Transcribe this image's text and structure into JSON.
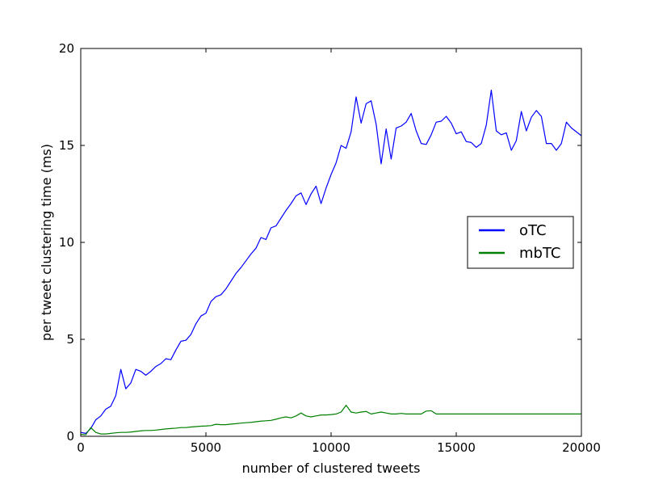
{
  "chart_data": {
    "type": "line",
    "title": "",
    "xlabel": "number of clustered tweets",
    "ylabel": "per tweet clustering time (ms)",
    "xlim": [
      0,
      20000
    ],
    "ylim": [
      0,
      20
    ],
    "xticks": [
      0,
      5000,
      10000,
      15000,
      20000
    ],
    "yticks": [
      0,
      5,
      10,
      15,
      20
    ],
    "x_tick_labels": [
      "0",
      "5000",
      "10000",
      "15000",
      "20000"
    ],
    "y_tick_labels": [
      "0",
      "5",
      "10",
      "15",
      "20"
    ],
    "grid": false,
    "legend_position": "right",
    "series": [
      {
        "name": "oTC",
        "color": "#0000ff",
        "points": [
          [
            0,
            0.2
          ],
          [
            200,
            0.15
          ],
          [
            400,
            0.4
          ],
          [
            600,
            0.85
          ],
          [
            800,
            1.05
          ],
          [
            1000,
            1.4
          ],
          [
            1200,
            1.55
          ],
          [
            1400,
            2.1
          ],
          [
            1600,
            3.45
          ],
          [
            1800,
            2.45
          ],
          [
            2000,
            2.75
          ],
          [
            2200,
            3.45
          ],
          [
            2400,
            3.35
          ],
          [
            2600,
            3.15
          ],
          [
            2800,
            3.35
          ],
          [
            3000,
            3.6
          ],
          [
            3200,
            3.75
          ],
          [
            3400,
            4.0
          ],
          [
            3600,
            3.95
          ],
          [
            3800,
            4.45
          ],
          [
            4000,
            4.9
          ],
          [
            4200,
            4.95
          ],
          [
            4400,
            5.25
          ],
          [
            4600,
            5.8
          ],
          [
            4800,
            6.2
          ],
          [
            5000,
            6.35
          ],
          [
            5200,
            6.95
          ],
          [
            5400,
            7.2
          ],
          [
            5600,
            7.3
          ],
          [
            5800,
            7.6
          ],
          [
            6000,
            8.0
          ],
          [
            6200,
            8.4
          ],
          [
            6400,
            8.7
          ],
          [
            6600,
            9.05
          ],
          [
            6800,
            9.4
          ],
          [
            7000,
            9.7
          ],
          [
            7200,
            10.25
          ],
          [
            7400,
            10.15
          ],
          [
            7600,
            10.75
          ],
          [
            7800,
            10.85
          ],
          [
            8000,
            11.25
          ],
          [
            8200,
            11.65
          ],
          [
            8400,
            12.0
          ],
          [
            8600,
            12.4
          ],
          [
            8800,
            12.55
          ],
          [
            9000,
            11.95
          ],
          [
            9200,
            12.5
          ],
          [
            9400,
            12.9
          ],
          [
            9600,
            12.0
          ],
          [
            9800,
            12.8
          ],
          [
            10000,
            13.5
          ],
          [
            10200,
            14.1
          ],
          [
            10400,
            15.0
          ],
          [
            10600,
            14.85
          ],
          [
            10800,
            15.7
          ],
          [
            11000,
            17.5
          ],
          [
            11200,
            16.15
          ],
          [
            11400,
            17.15
          ],
          [
            11600,
            17.3
          ],
          [
            11800,
            16.1
          ],
          [
            12000,
            14.05
          ],
          [
            12200,
            15.85
          ],
          [
            12400,
            14.3
          ],
          [
            12600,
            15.9
          ],
          [
            12800,
            16.0
          ],
          [
            13000,
            16.2
          ],
          [
            13200,
            16.65
          ],
          [
            13400,
            15.75
          ],
          [
            13600,
            15.1
          ],
          [
            13800,
            15.05
          ],
          [
            14000,
            15.55
          ],
          [
            14200,
            16.2
          ],
          [
            14400,
            16.25
          ],
          [
            14600,
            16.5
          ],
          [
            14800,
            16.15
          ],
          [
            15000,
            15.6
          ],
          [
            15200,
            15.7
          ],
          [
            15400,
            15.2
          ],
          [
            15600,
            15.15
          ],
          [
            15800,
            14.9
          ],
          [
            16000,
            15.1
          ],
          [
            16200,
            16.05
          ],
          [
            16400,
            17.85
          ],
          [
            16600,
            15.75
          ],
          [
            16800,
            15.55
          ],
          [
            17000,
            15.65
          ],
          [
            17200,
            14.75
          ],
          [
            17400,
            15.25
          ],
          [
            17600,
            16.75
          ],
          [
            17800,
            15.75
          ],
          [
            18000,
            16.45
          ],
          [
            18200,
            16.8
          ],
          [
            18400,
            16.5
          ],
          [
            18600,
            15.1
          ],
          [
            18800,
            15.1
          ],
          [
            19000,
            14.75
          ],
          [
            19200,
            15.1
          ],
          [
            19400,
            16.2
          ],
          [
            19600,
            15.9
          ],
          [
            20000,
            15.5
          ]
        ]
      },
      {
        "name": "mbTC",
        "color": "#008000",
        "points": [
          [
            0,
            0.1
          ],
          [
            200,
            0.08
          ],
          [
            400,
            0.45
          ],
          [
            600,
            0.2
          ],
          [
            800,
            0.12
          ],
          [
            1000,
            0.12
          ],
          [
            1200,
            0.15
          ],
          [
            1400,
            0.18
          ],
          [
            1600,
            0.2
          ],
          [
            1800,
            0.2
          ],
          [
            2000,
            0.22
          ],
          [
            2200,
            0.25
          ],
          [
            2400,
            0.28
          ],
          [
            2600,
            0.3
          ],
          [
            2800,
            0.3
          ],
          [
            3000,
            0.32
          ],
          [
            3200,
            0.35
          ],
          [
            3400,
            0.38
          ],
          [
            3600,
            0.4
          ],
          [
            3800,
            0.42
          ],
          [
            4000,
            0.45
          ],
          [
            4200,
            0.45
          ],
          [
            4400,
            0.48
          ],
          [
            4600,
            0.5
          ],
          [
            4800,
            0.52
          ],
          [
            5000,
            0.53
          ],
          [
            5200,
            0.55
          ],
          [
            5400,
            0.62
          ],
          [
            5600,
            0.6
          ],
          [
            5800,
            0.6
          ],
          [
            6000,
            0.63
          ],
          [
            6200,
            0.65
          ],
          [
            6400,
            0.68
          ],
          [
            6600,
            0.7
          ],
          [
            6800,
            0.72
          ],
          [
            7000,
            0.75
          ],
          [
            7200,
            0.78
          ],
          [
            7400,
            0.8
          ],
          [
            7600,
            0.82
          ],
          [
            7800,
            0.88
          ],
          [
            8000,
            0.95
          ],
          [
            8200,
            1.0
          ],
          [
            8400,
            0.95
          ],
          [
            8600,
            1.05
          ],
          [
            8800,
            1.2
          ],
          [
            9000,
            1.05
          ],
          [
            9200,
            1.0
          ],
          [
            9400,
            1.05
          ],
          [
            9600,
            1.1
          ],
          [
            9800,
            1.1
          ],
          [
            10000,
            1.12
          ],
          [
            10200,
            1.15
          ],
          [
            10400,
            1.25
          ],
          [
            10600,
            1.6
          ],
          [
            10800,
            1.25
          ],
          [
            11000,
            1.2
          ],
          [
            11200,
            1.25
          ],
          [
            11400,
            1.28
          ],
          [
            11600,
            1.15
          ],
          [
            11800,
            1.2
          ],
          [
            12000,
            1.25
          ],
          [
            12200,
            1.2
          ],
          [
            12400,
            1.15
          ],
          [
            12600,
            1.15
          ],
          [
            12800,
            1.18
          ],
          [
            13000,
            1.15
          ],
          [
            13200,
            1.15
          ],
          [
            13400,
            1.15
          ],
          [
            13600,
            1.15
          ],
          [
            13800,
            1.3
          ],
          [
            14000,
            1.32
          ],
          [
            14200,
            1.15
          ],
          [
            14400,
            1.15
          ],
          [
            14600,
            1.15
          ],
          [
            14800,
            1.15
          ],
          [
            15000,
            1.15
          ],
          [
            15500,
            1.15
          ],
          [
            16000,
            1.15
          ],
          [
            16500,
            1.15
          ],
          [
            17000,
            1.15
          ],
          [
            17500,
            1.15
          ],
          [
            18000,
            1.15
          ],
          [
            18500,
            1.15
          ],
          [
            19000,
            1.15
          ],
          [
            19500,
            1.15
          ],
          [
            20000,
            1.15
          ]
        ]
      }
    ]
  }
}
